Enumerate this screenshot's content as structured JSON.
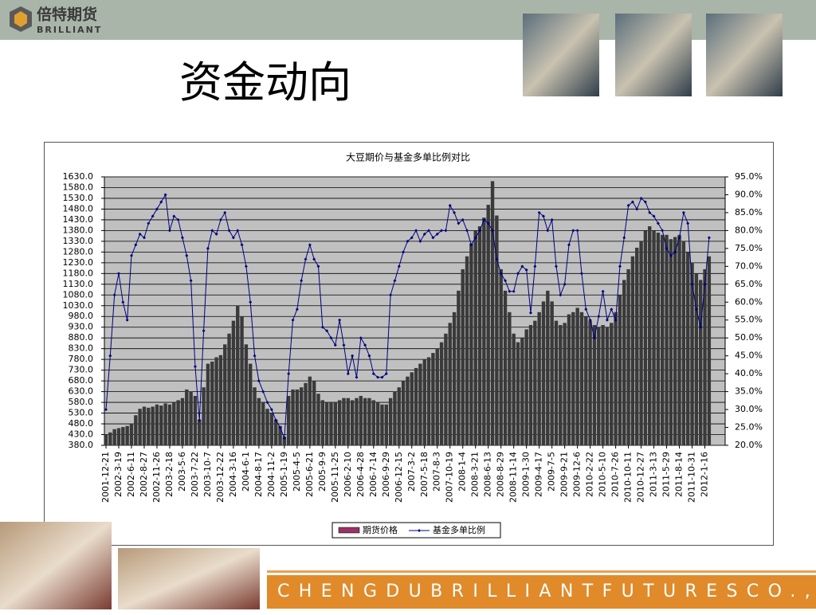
{
  "logo": {
    "name": "倍特期货",
    "latin": "BRILLIANT"
  },
  "slide_title": "资金动向",
  "footer": {
    "company": "CHENGDUBRILLIANTFUTURESCO.,LTD."
  },
  "chart_data": {
    "type": "bar",
    "title": "大豆期价与基金多单比例对比",
    "categories": [
      "2001-12-21",
      null,
      null,
      "2002-3-19",
      null,
      null,
      "2002-6-11",
      null,
      null,
      "2002-8-27",
      null,
      null,
      "2002-11-26",
      null,
      null,
      "2003-2-18",
      null,
      null,
      "2003-5-6",
      null,
      null,
      "2003-7-22",
      null,
      null,
      "2003-10-7",
      null,
      null,
      "2003-12-22",
      null,
      null,
      "2004-3-16",
      null,
      null,
      "2004-6-1",
      null,
      null,
      "2004-8-17",
      null,
      null,
      "2004-11-2",
      null,
      null,
      "2005-1-19",
      null,
      null,
      "2005-4-5",
      null,
      null,
      "2005-6-21",
      null,
      null,
      "2005-9-9",
      null,
      null,
      "2005-11-25",
      null,
      null,
      "2006-2-10",
      null,
      null,
      "2006-4-28",
      null,
      null,
      "2006-7-14",
      null,
      null,
      "2006-9-29",
      null,
      null,
      "2006-12-15",
      null,
      null,
      "2007-3-2",
      null,
      null,
      "2007-5-18",
      null,
      null,
      "2007-8-3",
      null,
      null,
      "2007-10-19",
      null,
      null,
      "2008-1-4",
      null,
      null,
      "2008-3-21",
      null,
      null,
      "2008-6-13",
      null,
      null,
      "2008-8-29",
      null,
      null,
      "2008-11-14",
      null,
      null,
      "2009-1-30",
      null,
      null,
      "2009-4-17",
      null,
      null,
      "2009-7-5",
      null,
      null,
      "2009-9-21",
      null,
      null,
      "2009-12-6",
      null,
      null,
      "2010-2-22",
      null,
      null,
      "2010-5-10",
      null,
      null,
      "2010-7-26",
      null,
      null,
      "2010-10-11",
      null,
      null,
      "2010-12-27",
      null,
      null,
      "2011-3-13",
      null,
      null,
      "2011-5-29",
      null,
      null,
      "2011-8-14",
      null,
      null,
      "2011-10-31",
      null,
      null,
      "2012-1-16",
      null
    ],
    "series": [
      {
        "name": "期货价格",
        "type": "bar",
        "color": "#3a3a3a",
        "legend_color": "#993366",
        "values": [
          430,
          440,
          455,
          460,
          465,
          470,
          480,
          520,
          550,
          560,
          555,
          560,
          570,
          565,
          575,
          570,
          580,
          590,
          600,
          640,
          630,
          610,
          500,
          650,
          760,
          770,
          790,
          800,
          850,
          900,
          960,
          1030,
          980,
          850,
          760,
          650,
          600,
          580,
          550,
          530,
          500,
          470,
          420,
          610,
          640,
          640,
          650,
          670,
          700,
          680,
          620,
          590,
          580,
          580,
          580,
          590,
          600,
          600,
          590,
          600,
          610,
          600,
          600,
          590,
          580,
          570,
          570,
          600,
          630,
          650,
          680,
          700,
          720,
          740,
          760,
          780,
          790,
          810,
          830,
          860,
          900,
          950,
          1000,
          1100,
          1200,
          1260,
          1320,
          1380,
          1400,
          1440,
          1500,
          1610,
          1450,
          1200,
          1100,
          1000,
          900,
          860,
          880,
          920,
          940,
          960,
          1000,
          1050,
          1100,
          1050,
          960,
          940,
          950,
          990,
          1000,
          1020,
          1000,
          980,
          960,
          940,
          930,
          940,
          930,
          950,
          1000,
          1080,
          1150,
          1200,
          1260,
          1300,
          1330,
          1380,
          1400,
          1380,
          1370,
          1360,
          1360,
          1340,
          1350,
          1360,
          1330,
          1280,
          1230,
          1180,
          1150,
          1200,
          1260
        ]
      },
      {
        "name": "基金多单比例",
        "type": "line",
        "axis": "y2",
        "color": "#000080",
        "values": [
          30,
          45,
          62,
          68,
          60,
          55,
          73,
          76,
          79,
          78,
          82,
          84,
          86,
          88,
          90,
          80,
          84,
          83,
          78,
          73,
          66,
          42,
          27,
          52,
          75,
          80,
          79,
          83,
          85,
          80,
          78,
          80,
          76,
          70,
          60,
          45,
          38,
          35,
          32,
          30,
          27,
          25,
          22,
          40,
          55,
          58,
          66,
          72,
          76,
          72,
          70,
          53,
          52,
          50,
          48,
          55,
          48,
          40,
          45,
          39,
          50,
          48,
          45,
          40,
          39,
          39,
          40,
          62,
          66,
          70,
          74,
          77,
          78,
          80,
          77,
          79,
          80,
          78,
          79,
          80,
          80,
          87,
          85,
          82,
          83,
          80,
          76,
          78,
          80,
          83,
          82,
          80,
          72,
          68,
          66,
          63,
          63,
          68,
          70,
          69,
          57,
          70,
          85,
          84,
          80,
          83,
          70,
          62,
          65,
          76,
          80,
          80,
          68,
          58,
          55,
          50,
          56,
          63,
          55,
          58,
          55,
          70,
          78,
          87,
          88,
          86,
          89,
          88,
          85,
          84,
          82,
          80,
          75,
          73,
          74,
          78,
          85,
          82,
          65,
          58,
          53,
          65,
          78
        ]
      }
    ],
    "ylim": [
      380,
      1630
    ],
    "yticks": [
      {
        "value": 380,
        "label": "380.0"
      },
      {
        "value": 430,
        "label": "430.0"
      },
      {
        "value": 480,
        "label": "480.0"
      },
      {
        "value": 530,
        "label": "530.0"
      },
      {
        "value": 580,
        "label": "580.0"
      },
      {
        "value": 630,
        "label": "630.0"
      },
      {
        "value": 680,
        "label": "680.0"
      },
      {
        "value": 730,
        "label": "730.0"
      },
      {
        "value": 780,
        "label": "780.0"
      },
      {
        "value": 830,
        "label": "830.0"
      },
      {
        "value": 880,
        "label": "880.0"
      },
      {
        "value": 930,
        "label": "930.0"
      },
      {
        "value": 980,
        "label": "980.0"
      },
      {
        "value": 1030,
        "label": "1030.0"
      },
      {
        "value": 1080,
        "label": "1080.0"
      },
      {
        "value": 1130,
        "label": "1130.0"
      },
      {
        "value": 1180,
        "label": "1180.0"
      },
      {
        "value": 1230,
        "label": "1230.0"
      },
      {
        "value": 1280,
        "label": "1280.0"
      },
      {
        "value": 1330,
        "label": "1330.0"
      },
      {
        "value": 1380,
        "label": "1380.0"
      },
      {
        "value": 1430,
        "label": "1430.0"
      },
      {
        "value": 1480,
        "label": "1480.0"
      },
      {
        "value": 1530,
        "label": "1530.0"
      },
      {
        "value": 1580,
        "label": "1580.0"
      },
      {
        "value": 1630,
        "label": "1630.0"
      }
    ],
    "y2lim": [
      20,
      95
    ],
    "y2ticks": [
      {
        "value": 20,
        "label": "20.0%"
      },
      {
        "value": 25,
        "label": "25.0%"
      },
      {
        "value": 30,
        "label": "30.0%"
      },
      {
        "value": 35,
        "label": "35.0%"
      },
      {
        "value": 40,
        "label": "40.0%"
      },
      {
        "value": 45,
        "label": "45.0%"
      },
      {
        "value": 50,
        "label": "50.0%"
      },
      {
        "value": 55,
        "label": "55.0%"
      },
      {
        "value": 60,
        "label": "60.0%"
      },
      {
        "value": 65,
        "label": "65.0%"
      },
      {
        "value": 70,
        "label": "70.0%"
      },
      {
        "value": 75,
        "label": "75.0%"
      },
      {
        "value": 80,
        "label": "80.0%"
      },
      {
        "value": 85,
        "label": "85.0%"
      },
      {
        "value": 90,
        "label": "90.0%"
      },
      {
        "value": 95,
        "label": "95.0%"
      }
    ],
    "grid": true,
    "plot_background": "#c0c0c0",
    "legend": "bottom"
  }
}
